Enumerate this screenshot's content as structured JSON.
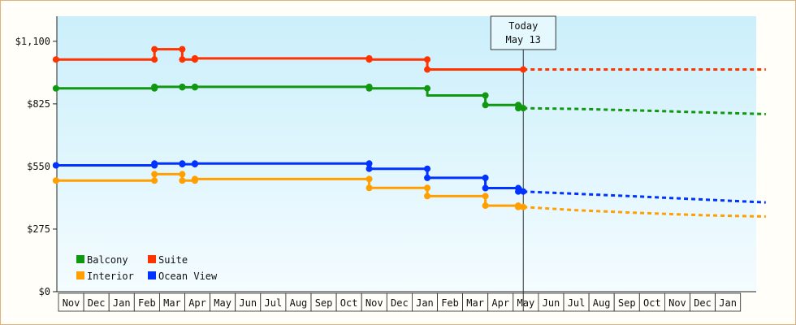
{
  "chart_data": {
    "type": "line",
    "y_ticks": [
      "$0",
      "$275",
      "$550",
      "$825",
      "$1,100"
    ],
    "y_tick_values": [
      0,
      275,
      550,
      825,
      1100
    ],
    "ylim": [
      0,
      1210
    ],
    "x_months": [
      "Nov",
      "Dec",
      "Jan",
      "Feb",
      "Mar",
      "Apr",
      "May",
      "Jun",
      "Jul",
      "Aug",
      "Sep",
      "Oct",
      "Nov",
      "Dec",
      "Jan",
      "Feb",
      "Mar",
      "Apr",
      "May",
      "Jun",
      "Jul",
      "Aug",
      "Sep",
      "Oct",
      "Nov",
      "Dec",
      "Jan"
    ],
    "today": {
      "line1": "Today",
      "line2": "May 13",
      "month_index": 18.4
    },
    "legend_placement": "bottom-left",
    "grid": false,
    "series": [
      {
        "name": "Suite",
        "color": "#ff3300",
        "steps": [
          [
            -0.1,
            1020
          ],
          [
            3.8,
            1020
          ],
          [
            3.8,
            1065
          ],
          [
            4.9,
            1065
          ],
          [
            4.9,
            1020
          ],
          [
            5.4,
            1020
          ],
          [
            5.4,
            1025
          ],
          [
            12.3,
            1025
          ],
          [
            12.3,
            1020
          ],
          [
            14.6,
            1020
          ],
          [
            14.6,
            976
          ],
          [
            18.4,
            976
          ]
        ],
        "forecast": [
          [
            18.4,
            976
          ],
          [
            28,
            976
          ]
        ],
        "markers": [
          [
            -0.1,
            1020
          ],
          [
            3.8,
            1020
          ],
          [
            3.8,
            1065
          ],
          [
            4.9,
            1065
          ],
          [
            4.9,
            1020
          ],
          [
            5.4,
            1020
          ],
          [
            5.4,
            1025
          ],
          [
            12.3,
            1025
          ],
          [
            12.3,
            1020
          ],
          [
            14.6,
            1020
          ],
          [
            14.6,
            976
          ],
          [
            18.4,
            976
          ]
        ]
      },
      {
        "name": "Balcony",
        "color": "#109910",
        "steps": [
          [
            -0.1,
            893
          ],
          [
            3.8,
            893
          ],
          [
            3.8,
            900
          ],
          [
            4.9,
            900
          ],
          [
            4.9,
            898
          ],
          [
            5.4,
            898
          ],
          [
            5.4,
            900
          ],
          [
            12.3,
            900
          ],
          [
            12.3,
            893
          ],
          [
            14.6,
            893
          ],
          [
            14.6,
            862
          ],
          [
            16.9,
            862
          ],
          [
            16.9,
            820
          ],
          [
            18.3,
            820
          ],
          [
            18.3,
            806
          ],
          [
            18.4,
            806
          ]
        ],
        "forecast": [
          [
            18.4,
            806
          ],
          [
            20.5,
            803
          ],
          [
            23,
            796
          ],
          [
            25.5,
            788
          ],
          [
            28,
            780
          ]
        ],
        "markers": [
          [
            -0.1,
            893
          ],
          [
            3.8,
            893
          ],
          [
            3.8,
            900
          ],
          [
            4.9,
            900
          ],
          [
            4.9,
            898
          ],
          [
            5.4,
            898
          ],
          [
            5.4,
            900
          ],
          [
            12.3,
            900
          ],
          [
            12.3,
            893
          ],
          [
            14.6,
            893
          ],
          [
            16.9,
            862
          ],
          [
            16.9,
            820
          ],
          [
            18.2,
            820
          ],
          [
            18.2,
            806
          ],
          [
            18.4,
            806
          ]
        ]
      },
      {
        "name": "Ocean View",
        "color": "#0033ff",
        "steps": [
          [
            -0.1,
            555
          ],
          [
            3.8,
            555
          ],
          [
            3.8,
            563
          ],
          [
            4.9,
            563
          ],
          [
            4.9,
            560
          ],
          [
            5.4,
            560
          ],
          [
            5.4,
            563
          ],
          [
            12.3,
            563
          ],
          [
            12.3,
            540
          ],
          [
            14.6,
            540
          ],
          [
            14.6,
            500
          ],
          [
            16.9,
            500
          ],
          [
            16.9,
            455
          ],
          [
            18.3,
            455
          ],
          [
            18.3,
            440
          ],
          [
            18.4,
            440
          ]
        ],
        "forecast": [
          [
            18.4,
            440
          ],
          [
            20.5,
            430
          ],
          [
            23,
            418
          ],
          [
            25.5,
            405
          ],
          [
            28,
            392
          ]
        ],
        "markers": [
          [
            -0.1,
            555
          ],
          [
            3.8,
            555
          ],
          [
            3.8,
            563
          ],
          [
            4.9,
            563
          ],
          [
            4.9,
            560
          ],
          [
            5.4,
            560
          ],
          [
            5.4,
            563
          ],
          [
            12.3,
            563
          ],
          [
            12.3,
            540
          ],
          [
            14.6,
            540
          ],
          [
            14.6,
            500
          ],
          [
            16.9,
            500
          ],
          [
            16.9,
            455
          ],
          [
            18.2,
            455
          ],
          [
            18.2,
            440
          ],
          [
            18.4,
            440
          ]
        ]
      },
      {
        "name": "Interior",
        "color": "#ffa000",
        "steps": [
          [
            -0.1,
            488
          ],
          [
            3.8,
            488
          ],
          [
            3.8,
            516
          ],
          [
            4.9,
            516
          ],
          [
            4.9,
            488
          ],
          [
            5.4,
            488
          ],
          [
            5.4,
            495
          ],
          [
            12.3,
            495
          ],
          [
            12.3,
            456
          ],
          [
            14.6,
            456
          ],
          [
            14.6,
            420
          ],
          [
            16.9,
            420
          ],
          [
            16.9,
            378
          ],
          [
            18.3,
            378
          ],
          [
            18.3,
            372
          ],
          [
            18.4,
            372
          ]
        ],
        "forecast": [
          [
            18.4,
            372
          ],
          [
            20.5,
            358
          ],
          [
            23,
            346
          ],
          [
            25.5,
            336
          ],
          [
            28,
            330
          ]
        ],
        "markers": [
          [
            -0.1,
            488
          ],
          [
            3.8,
            488
          ],
          [
            3.8,
            516
          ],
          [
            4.9,
            516
          ],
          [
            4.9,
            488
          ],
          [
            5.4,
            488
          ],
          [
            5.4,
            495
          ],
          [
            12.3,
            495
          ],
          [
            12.3,
            456
          ],
          [
            14.6,
            456
          ],
          [
            14.6,
            420
          ],
          [
            16.9,
            420
          ],
          [
            16.9,
            378
          ],
          [
            18.2,
            378
          ],
          [
            18.2,
            372
          ],
          [
            18.4,
            372
          ]
        ]
      }
    ],
    "legend": [
      {
        "label": "Balcony",
        "color": "#109910"
      },
      {
        "label": "Suite",
        "color": "#ff3300"
      },
      {
        "label": "Interior",
        "color": "#ffa000"
      },
      {
        "label": "Ocean View",
        "color": "#0033ff"
      }
    ]
  }
}
